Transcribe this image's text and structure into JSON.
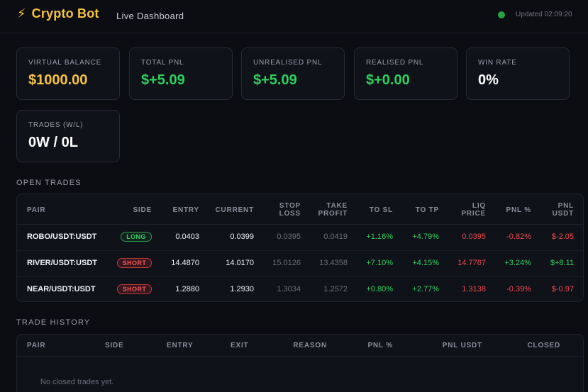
{
  "header": {
    "title": "Crypto Bot",
    "subtitle": "Live Dashboard",
    "updated": "Updated 02:09:20",
    "colors": {
      "brand": "#f6c23e",
      "status": "#25a244"
    }
  },
  "stats": [
    {
      "label": "Virtual Balance",
      "value": "$1000.00",
      "color": "#f6c23e"
    },
    {
      "label": "Total PnL",
      "value": "$+5.09",
      "color": "#2fcf5c"
    },
    {
      "label": "Unrealised PnL",
      "value": "$+5.09",
      "color": "#2fcf5c"
    },
    {
      "label": "Realised PnL",
      "value": "$+0.00",
      "color": "#2fcf5c"
    },
    {
      "label": "Win Rate",
      "value": "0%",
      "color": "#ffffff"
    },
    {
      "label": "Trades (W/L)",
      "value": "0W / 0L",
      "color": "#ffffff"
    }
  ],
  "open_trades": {
    "title": "Open Trades",
    "headers": {
      "pair": "Pair",
      "side": "Side",
      "entry": "Entry",
      "current": "Current",
      "stop_loss_1": "Stop",
      "stop_loss_2": "Loss",
      "take_profit_1": "Take",
      "take_profit_2": "Profit",
      "to_sl": "To SL",
      "to_tp": "To TP",
      "liq_1": "Liq",
      "liq_2": "Price",
      "pnl_pct": "PnL %",
      "pnl_usdt_1": "PnL",
      "pnl_usdt_2": "USDT"
    },
    "rows": [
      {
        "pair": "ROBO/USDT:USDT",
        "side": "LONG",
        "entry": "0.0403",
        "current": "0.0399",
        "stop_loss": "0.0395",
        "take_profit": "0.0419",
        "to_sl": "+1.16%",
        "to_tp": "+4.79%",
        "liq_price": "0.0395",
        "pnl_pct": "-0.82%",
        "pnl_usdt": "$-2.05"
      },
      {
        "pair": "RIVER/USDT:USDT",
        "side": "SHORT",
        "entry": "14.4870",
        "current": "14.0170",
        "stop_loss": "15.0126",
        "take_profit": "13.4358",
        "to_sl": "+7.10%",
        "to_tp": "+4.15%",
        "liq_price": "14.7767",
        "pnl_pct": "+3.24%",
        "pnl_usdt": "$+8.11"
      },
      {
        "pair": "NEAR/USDT:USDT",
        "side": "SHORT",
        "entry": "1.2880",
        "current": "1.2930",
        "stop_loss": "1.3034",
        "take_profit": "1.2572",
        "to_sl": "+0.80%",
        "to_tp": "+2.77%",
        "liq_price": "1.3138",
        "pnl_pct": "-0.39%",
        "pnl_usdt": "$-0.97"
      }
    ]
  },
  "trade_history": {
    "title": "Trade History",
    "headers": {
      "pair": "Pair",
      "side": "Side",
      "entry": "Entry",
      "exit": "Exit",
      "reason": "Reason",
      "pnl_pct": "PnL %",
      "pnl_usdt": "PnL USDT",
      "closed": "Closed"
    },
    "empty_message": "No closed trades yet."
  }
}
